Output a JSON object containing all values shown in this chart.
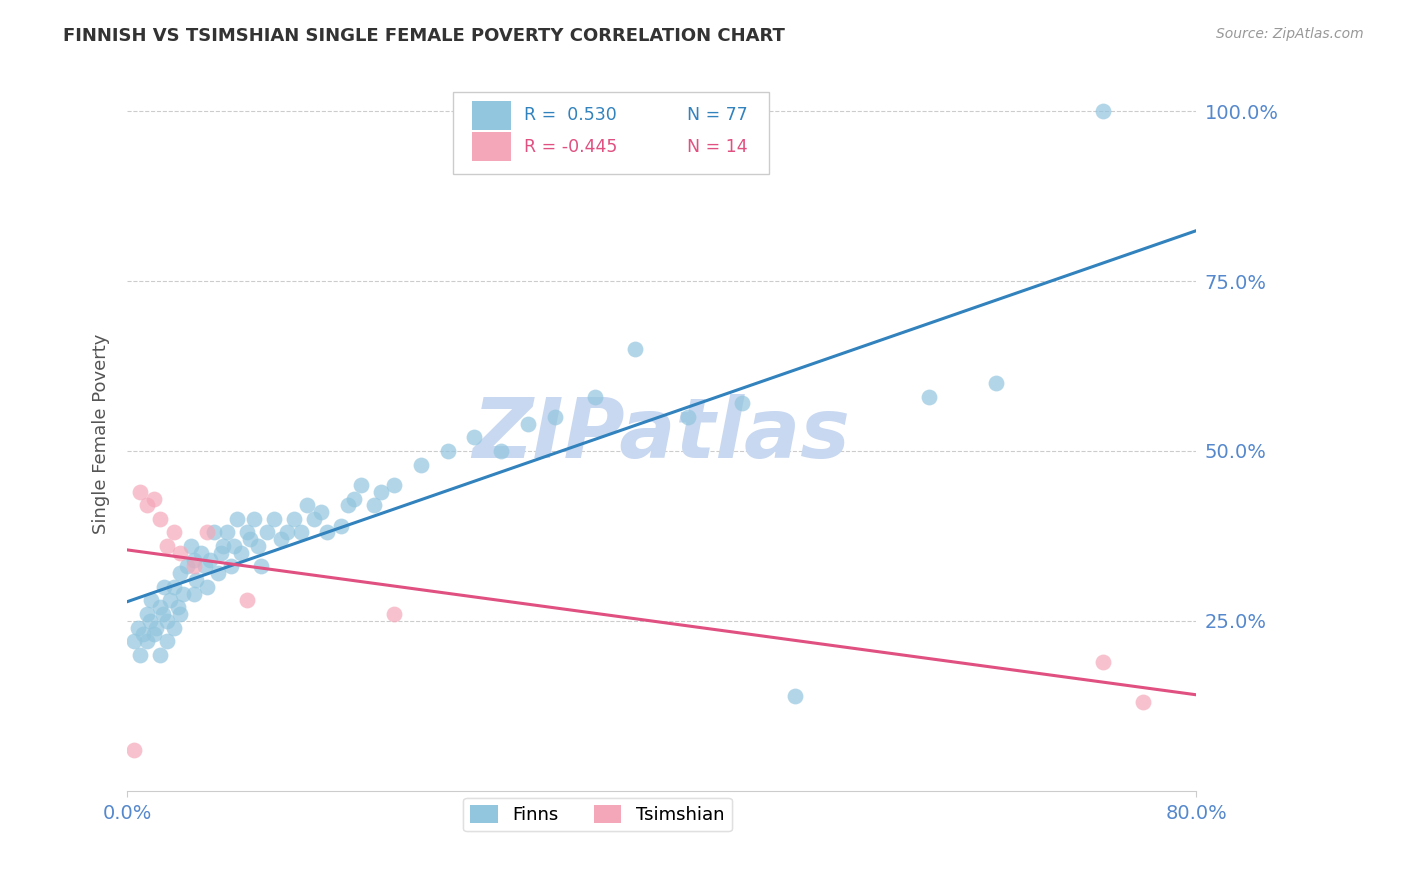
{
  "title": "FINNISH VS TSIMSHIAN SINGLE FEMALE POVERTY CORRELATION CHART",
  "source": "Source: ZipAtlas.com",
  "ylabel": "Single Female Poverty",
  "xlim": [
    0.0,
    0.8
  ],
  "ylim": [
    0.0,
    1.05
  ],
  "yticks": [
    0.25,
    0.5,
    0.75,
    1.0
  ],
  "ytick_labels": [
    "25.0%",
    "50.0%",
    "75.0%",
    "100.0%"
  ],
  "xtick_left_label": "0.0%",
  "xtick_right_label": "80.0%",
  "legend_finns_r": "R =  0.530",
  "legend_finns_n": "N = 77",
  "legend_tsim_r": "R = -0.445",
  "legend_tsim_n": "N = 14",
  "finns_color": "#92c5de",
  "tsim_color": "#f4a7b9",
  "finns_line_color": "#3182bd",
  "tsim_line_color": "#e05080",
  "label_color": "#5588cc",
  "watermark": "ZIPatlas",
  "watermark_color": "#c8d8f0",
  "finns_x": [
    0.005,
    0.008,
    0.01,
    0.012,
    0.015,
    0.015,
    0.017,
    0.018,
    0.02,
    0.022,
    0.025,
    0.025,
    0.027,
    0.028,
    0.03,
    0.03,
    0.032,
    0.035,
    0.035,
    0.038,
    0.04,
    0.04,
    0.042,
    0.045,
    0.048,
    0.05,
    0.05,
    0.052,
    0.055,
    0.058,
    0.06,
    0.062,
    0.065,
    0.068,
    0.07,
    0.072,
    0.075,
    0.078,
    0.08,
    0.082,
    0.085,
    0.09,
    0.092,
    0.095,
    0.098,
    0.1,
    0.105,
    0.11,
    0.115,
    0.12,
    0.125,
    0.13,
    0.135,
    0.14,
    0.145,
    0.15,
    0.16,
    0.165,
    0.17,
    0.175,
    0.185,
    0.19,
    0.2,
    0.22,
    0.24,
    0.26,
    0.28,
    0.3,
    0.32,
    0.35,
    0.38,
    0.42,
    0.46,
    0.5,
    0.6,
    0.65,
    0.73
  ],
  "finns_y": [
    0.22,
    0.24,
    0.2,
    0.23,
    0.22,
    0.26,
    0.25,
    0.28,
    0.23,
    0.24,
    0.2,
    0.27,
    0.26,
    0.3,
    0.22,
    0.25,
    0.28,
    0.24,
    0.3,
    0.27,
    0.26,
    0.32,
    0.29,
    0.33,
    0.36,
    0.29,
    0.34,
    0.31,
    0.35,
    0.33,
    0.3,
    0.34,
    0.38,
    0.32,
    0.35,
    0.36,
    0.38,
    0.33,
    0.36,
    0.4,
    0.35,
    0.38,
    0.37,
    0.4,
    0.36,
    0.33,
    0.38,
    0.4,
    0.37,
    0.38,
    0.4,
    0.38,
    0.42,
    0.4,
    0.41,
    0.38,
    0.39,
    0.42,
    0.43,
    0.45,
    0.42,
    0.44,
    0.45,
    0.48,
    0.5,
    0.52,
    0.5,
    0.54,
    0.55,
    0.58,
    0.65,
    0.55,
    0.57,
    0.14,
    0.58,
    0.6,
    1.0
  ],
  "tsim_x": [
    0.005,
    0.01,
    0.015,
    0.02,
    0.025,
    0.03,
    0.035,
    0.04,
    0.05,
    0.06,
    0.09,
    0.2,
    0.73,
    0.76
  ],
  "tsim_y": [
    0.06,
    0.44,
    0.42,
    0.43,
    0.4,
    0.36,
    0.38,
    0.35,
    0.33,
    0.38,
    0.28,
    0.26,
    0.19,
    0.13
  ]
}
